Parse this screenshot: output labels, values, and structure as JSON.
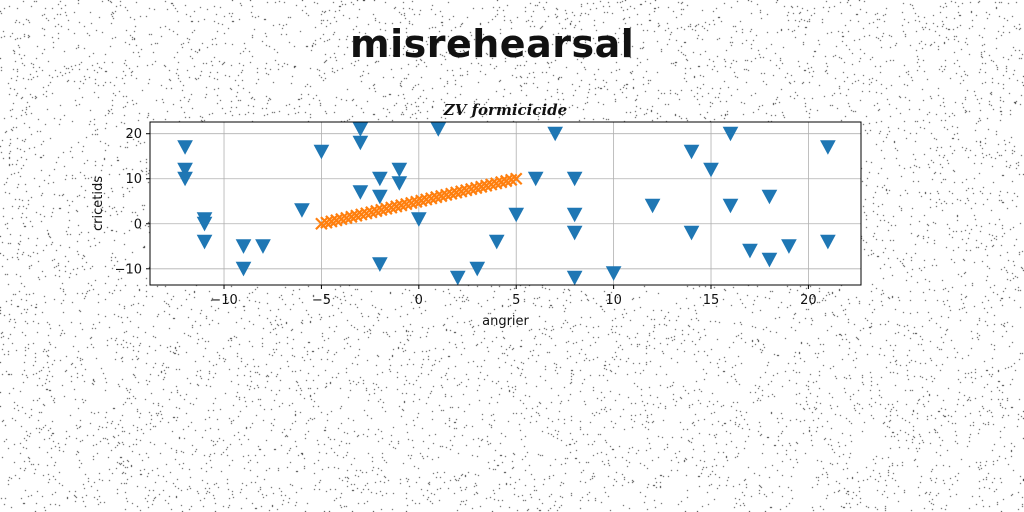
{
  "page": {
    "title": "misrehearsal"
  },
  "chart_data": {
    "type": "scatter",
    "title": "ZV formicicide",
    "xlabel": "angrier",
    "ylabel": "cricetids",
    "xlim": [
      -13.8,
      22.7
    ],
    "ylim": [
      -13.6,
      22.6
    ],
    "xticks": [
      -10,
      -5,
      0,
      5,
      10,
      15,
      20
    ],
    "yticks": [
      -10,
      0,
      10,
      20
    ],
    "xtick_labels": [
      "−10",
      "−5",
      "0",
      "5",
      "10",
      "15",
      "20"
    ],
    "ytick_labels": [
      "−10",
      "0",
      "10",
      "20"
    ],
    "grid": true,
    "series": [
      {
        "marker": "triangle-down",
        "color": "#1f77b4",
        "points": [
          [
            -12,
            17
          ],
          [
            -12,
            12
          ],
          [
            -12,
            10
          ],
          [
            -11,
            1
          ],
          [
            -11,
            0
          ],
          [
            -11,
            -4
          ],
          [
            -9,
            -5
          ],
          [
            -9,
            -10
          ],
          [
            -8,
            -5
          ],
          [
            -6,
            3
          ],
          [
            -5,
            16
          ],
          [
            -3,
            21
          ],
          [
            -3,
            18
          ],
          [
            -3,
            7
          ],
          [
            -2,
            10
          ],
          [
            -2,
            6
          ],
          [
            -2,
            -9
          ],
          [
            -1,
            12
          ],
          [
            -1,
            9
          ],
          [
            0,
            1
          ],
          [
            1,
            21
          ],
          [
            2,
            -12
          ],
          [
            3,
            -10
          ],
          [
            4,
            -4
          ],
          [
            5,
            2
          ],
          [
            6,
            10
          ],
          [
            7,
            20
          ],
          [
            8,
            10
          ],
          [
            8,
            2
          ],
          [
            8,
            -2
          ],
          [
            8,
            -12
          ],
          [
            10,
            -11
          ],
          [
            12,
            4
          ],
          [
            14,
            16
          ],
          [
            14,
            -2
          ],
          [
            15,
            12
          ],
          [
            16,
            20
          ],
          [
            16,
            4
          ],
          [
            17,
            -6
          ],
          [
            18,
            6
          ],
          [
            18,
            -8
          ],
          [
            19,
            -5
          ],
          [
            21,
            17
          ],
          [
            21,
            -4
          ]
        ]
      },
      {
        "marker": "x",
        "color": "#ff7f0e",
        "line": {
          "x_start": -5,
          "x_end": 5,
          "y_start": 0,
          "y_end": 10,
          "count": 40
        }
      }
    ]
  }
}
